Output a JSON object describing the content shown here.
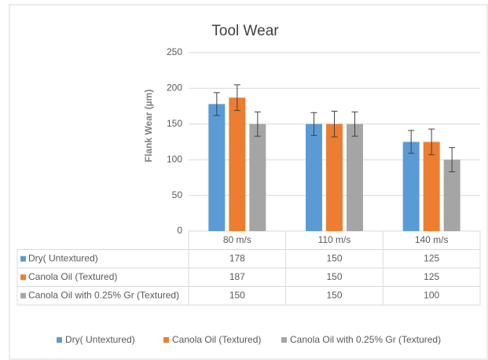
{
  "chart_data": {
    "type": "bar",
    "title": "Tool Wear",
    "y_label": "Flank Wear (µm)",
    "categories": [
      "80 m/s",
      "110 m/s",
      "140 m/s"
    ],
    "series": [
      {
        "name": "Dry( Untextured)",
        "color": "#5b9bd5",
        "values": [
          178,
          150,
          125
        ],
        "errors": [
          16,
          16,
          16
        ]
      },
      {
        "name": "Canola Oil (Textured)",
        "color": "#ed7d31",
        "values": [
          187,
          150,
          125
        ],
        "errors": [
          18,
          18,
          18
        ]
      },
      {
        "name": "Canola Oil with 0.25% Gr (Textured)",
        "color": "#a5a5a5",
        "values": [
          150,
          150,
          100
        ],
        "errors": [
          17,
          17,
          17
        ]
      }
    ],
    "ylim": [
      0,
      250
    ],
    "yticks": [
      0,
      50,
      100,
      150,
      200,
      250
    ],
    "grid": true,
    "legend": "bottom"
  }
}
